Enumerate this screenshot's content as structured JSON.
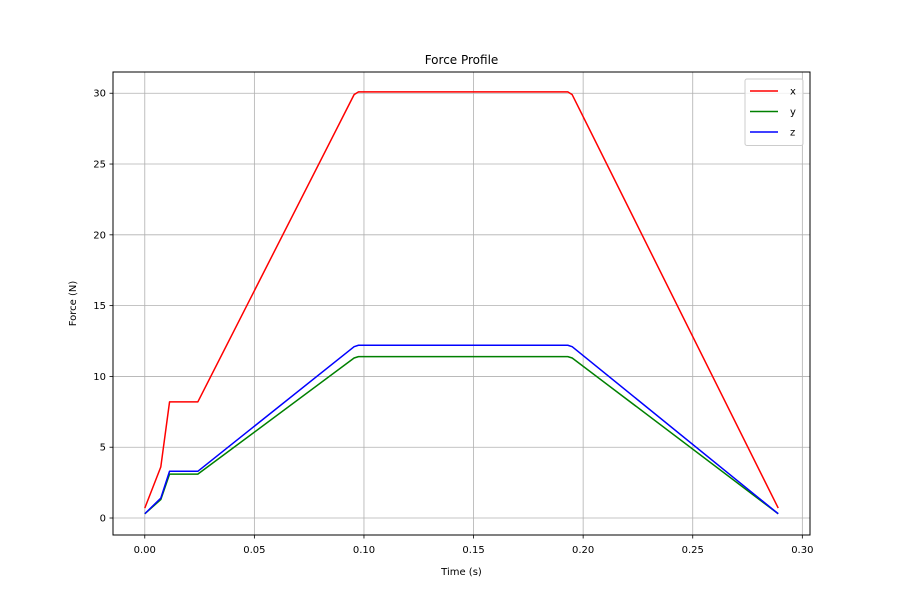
{
  "chart_data": {
    "type": "line",
    "title": "Force Profile",
    "xlabel": "Time (s)",
    "ylabel": "Force (N)",
    "xlim": [
      -0.0145,
      0.3035
    ],
    "ylim": [
      -1.2,
      31.5
    ],
    "xticks": [
      0.0,
      0.05,
      0.1,
      0.15,
      0.2,
      0.25,
      0.3
    ],
    "xtick_labels": [
      "0.00",
      "0.05",
      "0.10",
      "0.15",
      "0.20",
      "0.25",
      "0.30"
    ],
    "yticks": [
      0,
      5,
      10,
      15,
      20,
      25,
      30
    ],
    "ytick_labels": [
      "0",
      "5",
      "10",
      "15",
      "20",
      "25",
      "30"
    ],
    "grid": true,
    "legend_position": "top-right",
    "series": [
      {
        "name": "x",
        "color": "#ff0000",
        "x": [
          0.0,
          0.0073,
          0.0113,
          0.0242,
          0.0955,
          0.0975,
          0.193,
          0.195,
          0.289
        ],
        "y": [
          0.7,
          3.6,
          8.2,
          8.2,
          29.9,
          30.1,
          30.1,
          29.9,
          0.7
        ]
      },
      {
        "name": "y",
        "color": "#008000",
        "x": [
          0.0,
          0.0073,
          0.0113,
          0.0242,
          0.0955,
          0.0975,
          0.193,
          0.195,
          0.289
        ],
        "y": [
          0.3,
          1.3,
          3.1,
          3.1,
          11.3,
          11.4,
          11.4,
          11.3,
          0.3
        ]
      },
      {
        "name": "z",
        "color": "#0000ff",
        "x": [
          0.0,
          0.0073,
          0.0113,
          0.0242,
          0.0955,
          0.0975,
          0.193,
          0.195,
          0.289
        ],
        "y": [
          0.3,
          1.4,
          3.3,
          3.3,
          12.1,
          12.2,
          12.2,
          12.1,
          0.3
        ]
      }
    ]
  }
}
